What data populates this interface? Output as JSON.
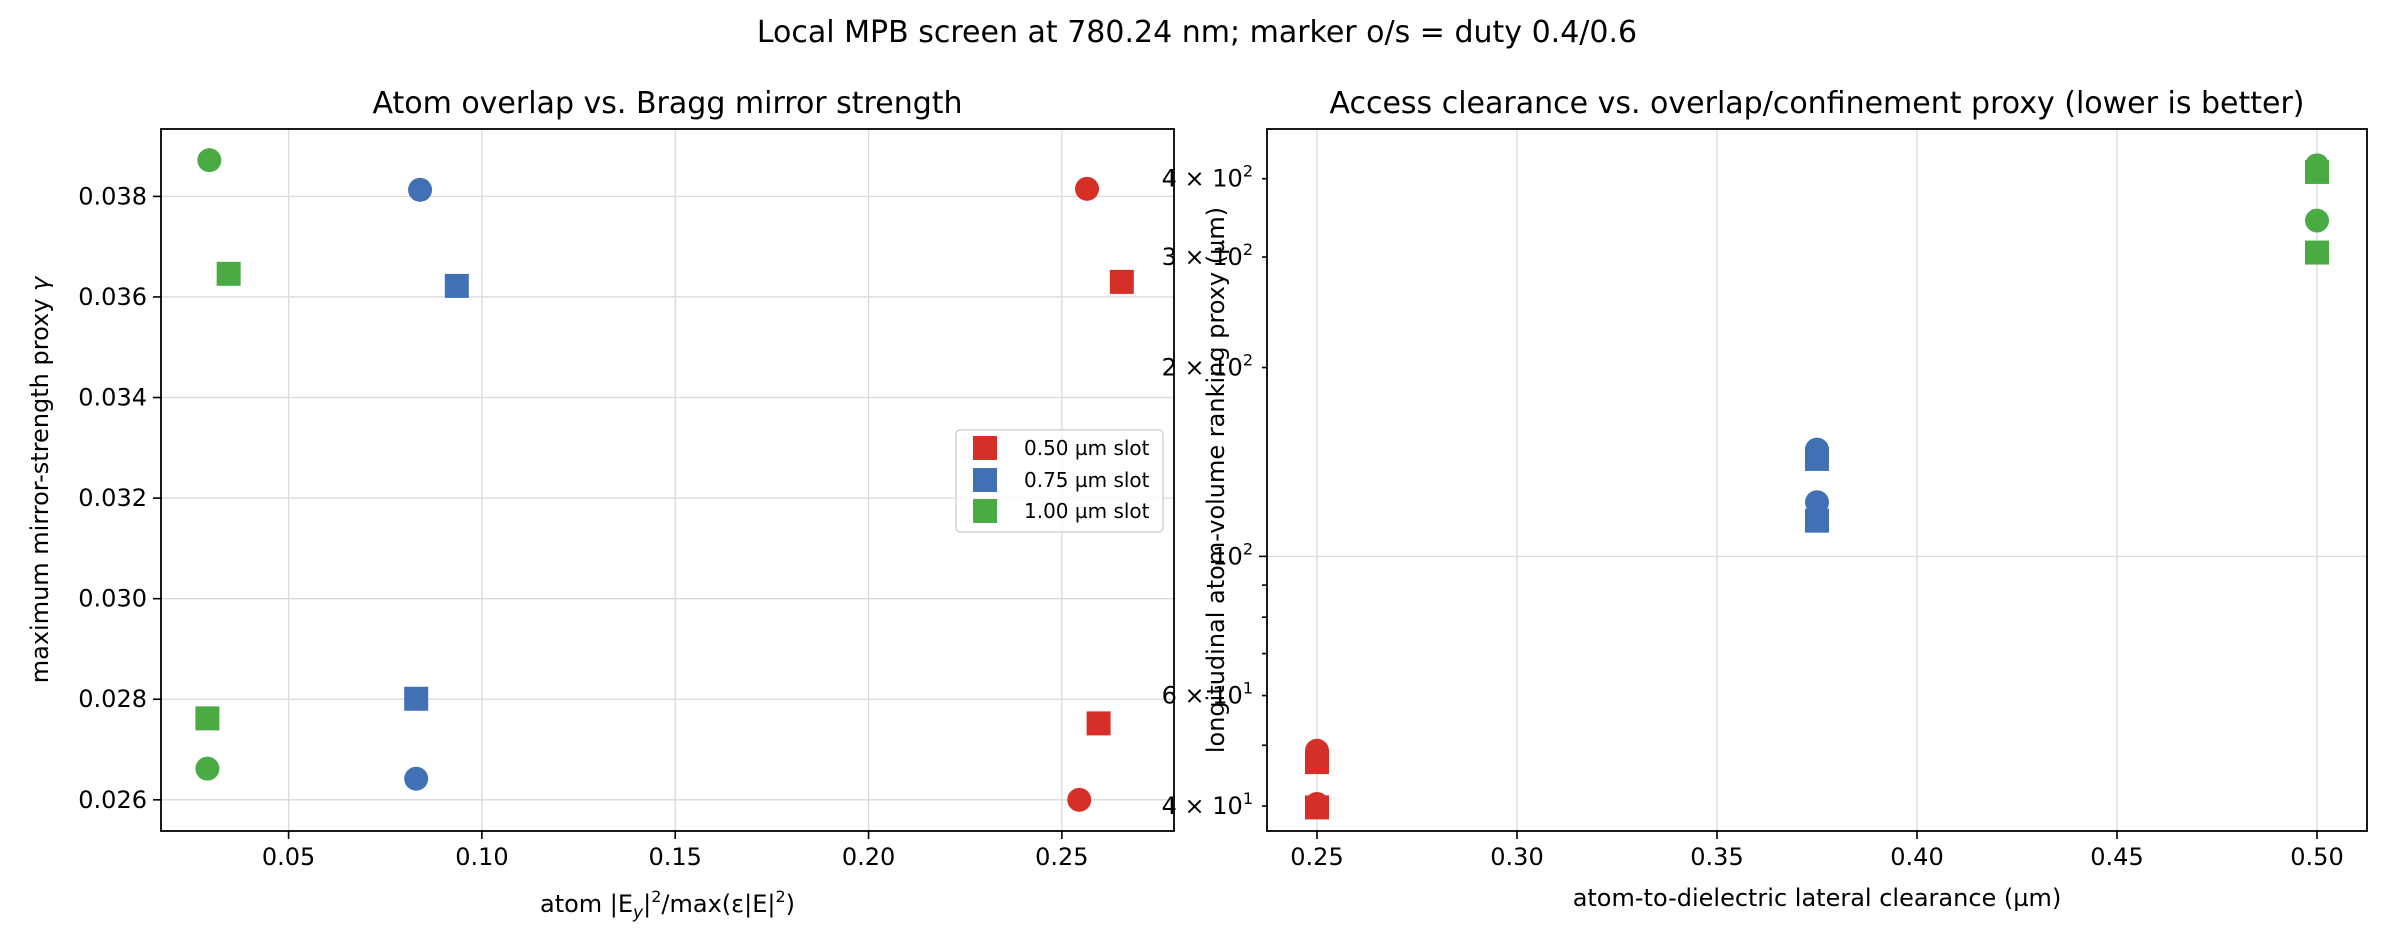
{
  "figure": {
    "suptitle": "Local MPB screen at 780.24 nm; marker o/s = duty 0.4/0.6"
  },
  "colors": {
    "0.50 µm slot": "#d62f28",
    "0.75 µm slot": "#4170b5",
    "1.00 µm slot": "#4aab44"
  },
  "chart_data": [
    {
      "type": "scatter",
      "title": "Atom overlap vs. Bragg mirror strength",
      "xlabel_parts": [
        "atom |E",
        "y",
        "|",
        "2",
        "/max(ε|E|",
        "2",
        ")"
      ],
      "ylabel_parts": [
        "maximum mirror-strength proxy ",
        "γ"
      ],
      "xlim": [
        0.017,
        0.279
      ],
      "ylim": [
        0.02538,
        0.03934
      ],
      "yscale": "linear",
      "grid": true,
      "xticks": [
        0.05,
        0.1,
        0.15,
        0.2,
        0.25
      ],
      "xtick_labels": [
        "0.05",
        "0.10",
        "0.15",
        "0.20",
        "0.25"
      ],
      "yticks": [
        0.026,
        0.028,
        0.03,
        0.032,
        0.034,
        0.036,
        0.038
      ],
      "ytick_labels": [
        "0.026",
        "0.028",
        "0.030",
        "0.032",
        "0.034",
        "0.036",
        "0.038"
      ],
      "legend_position": "center-right",
      "legend": [
        "0.50 µm slot",
        "0.75 µm slot",
        "1.00 µm slot"
      ],
      "series": [
        {
          "name": "0.50 µm slot",
          "color": "#d62f28",
          "points": [
            {
              "x": 0.2565,
              "y": 0.03815,
              "marker": "o"
            },
            {
              "x": 0.2655,
              "y": 0.0363,
              "marker": "s"
            },
            {
              "x": 0.2595,
              "y": 0.02752,
              "marker": "s"
            },
            {
              "x": 0.2545,
              "y": 0.026,
              "marker": "o"
            }
          ]
        },
        {
          "name": "0.75 µm slot",
          "color": "#4170b5",
          "points": [
            {
              "x": 0.084,
              "y": 0.03813,
              "marker": "o"
            },
            {
              "x": 0.0935,
              "y": 0.03622,
              "marker": "s"
            },
            {
              "x": 0.083,
              "y": 0.02801,
              "marker": "s"
            },
            {
              "x": 0.083,
              "y": 0.02642,
              "marker": "o"
            }
          ]
        },
        {
          "name": "1.00 µm slot",
          "color": "#4aab44",
          "points": [
            {
              "x": 0.0295,
              "y": 0.03872,
              "marker": "o"
            },
            {
              "x": 0.0345,
              "y": 0.03646,
              "marker": "s"
            },
            {
              "x": 0.029,
              "y": 0.02762,
              "marker": "s"
            },
            {
              "x": 0.029,
              "y": 0.02662,
              "marker": "o"
            }
          ]
        }
      ]
    },
    {
      "type": "scatter",
      "title": "Access clearance vs. overlap/confinement proxy (lower is better)",
      "xlabel": "atom-to-dielectric lateral clearance (µm)",
      "ylabel": "longitudinal atom-volume ranking proxy (µm)",
      "xlim": [
        0.2375,
        0.5125
      ],
      "ylim": [
        36.5,
        480
      ],
      "yscale": "log",
      "grid": true,
      "xticks": [
        0.25,
        0.3,
        0.35,
        0.4,
        0.45,
        0.5
      ],
      "xtick_labels": [
        "0.25",
        "0.30",
        "0.35",
        "0.40",
        "0.45",
        "0.50"
      ],
      "yticks_major": [
        100
      ],
      "yticks_minor": [
        40,
        60,
        200,
        300,
        400
      ],
      "ytick_labels": [
        {
          "base": "4 × 10",
          "exp": "1"
        },
        {
          "base": "6 × 10",
          "exp": "1"
        },
        {
          "base": "10",
          "exp": "2"
        },
        {
          "base": "2 × 10",
          "exp": "2"
        },
        {
          "base": "3 × 10",
          "exp": "2"
        },
        {
          "base": "4 × 10",
          "exp": "2"
        }
      ],
      "series": [
        {
          "name": "0.50 µm slot",
          "color": "#d62f28",
          "points": [
            {
              "x": 0.25,
              "y": 49.0,
              "marker": "o"
            },
            {
              "x": 0.25,
              "y": 47.0,
              "marker": "s"
            },
            {
              "x": 0.25,
              "y": 40.3,
              "marker": "o"
            },
            {
              "x": 0.25,
              "y": 39.8,
              "marker": "s"
            }
          ]
        },
        {
          "name": "0.75 µm slot",
          "color": "#4170b5",
          "points": [
            {
              "x": 0.375,
              "y": 148,
              "marker": "o"
            },
            {
              "x": 0.375,
              "y": 143,
              "marker": "s"
            },
            {
              "x": 0.375,
              "y": 122,
              "marker": "o"
            },
            {
              "x": 0.375,
              "y": 114,
              "marker": "s"
            }
          ]
        },
        {
          "name": "1.00 µm slot",
          "color": "#4aab44",
          "points": [
            {
              "x": 0.5,
              "y": 420,
              "marker": "o"
            },
            {
              "x": 0.5,
              "y": 410,
              "marker": "s"
            },
            {
              "x": 0.5,
              "y": 343,
              "marker": "o"
            },
            {
              "x": 0.5,
              "y": 305,
              "marker": "s"
            }
          ]
        }
      ]
    }
  ]
}
